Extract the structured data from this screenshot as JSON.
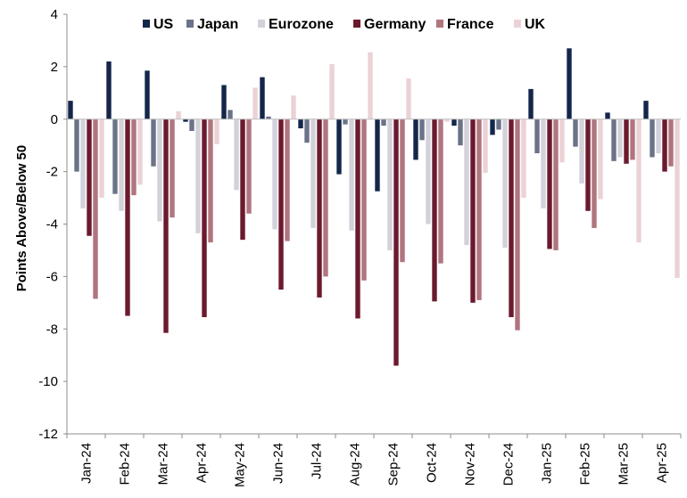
{
  "chart_data": {
    "type": "bar",
    "title": "",
    "xlabel": "",
    "ylabel": "Points Above/Below 50",
    "ylim": [
      -12,
      4
    ],
    "yticks": [
      4,
      2,
      0,
      -2,
      -4,
      -6,
      -8,
      -10,
      -12
    ],
    "grid": false,
    "legend_position": "top",
    "categories": [
      "Jan-24",
      "Feb-24",
      "Mar-24",
      "Apr-24",
      "May-24",
      "Jun-24",
      "Jul-24",
      "Aug-24",
      "Sep-24",
      "Oct-24",
      "Nov-24",
      "Dec-24",
      "Jan-25",
      "Feb-25",
      "Mar-25",
      "Apr-25"
    ],
    "series": [
      {
        "name": "US",
        "color": "#14264a",
        "values": [
          0.7,
          2.2,
          1.85,
          -0.1,
          1.3,
          1.6,
          -0.35,
          -2.1,
          -2.75,
          -1.55,
          -0.25,
          -0.6,
          1.15,
          2.7,
          0.25,
          0.7
        ]
      },
      {
        "name": "Japan",
        "color": "#6b7388",
        "values": [
          -2.0,
          -2.85,
          -1.8,
          -0.45,
          0.35,
          0.1,
          -0.9,
          -0.2,
          -0.25,
          -0.8,
          -1.0,
          -0.4,
          -1.3,
          -1.05,
          -1.6,
          -1.45
        ]
      },
      {
        "name": "Eurozone",
        "color": "#d3d1d9",
        "values": [
          -3.4,
          -3.5,
          -3.9,
          -4.35,
          -2.7,
          -4.2,
          -4.15,
          -4.25,
          -5.0,
          -4.0,
          -4.8,
          -4.9,
          -3.4,
          -2.45,
          -1.45,
          -1.3
        ]
      },
      {
        "name": "Germany",
        "color": "#6b1a2e",
        "values": [
          -4.45,
          -7.5,
          -8.15,
          -7.55,
          -4.6,
          -6.5,
          -6.8,
          -7.6,
          -9.4,
          -6.95,
          -7.0,
          -7.55,
          -4.95,
          -3.5,
          -1.7,
          -2.0
        ]
      },
      {
        "name": "France",
        "color": "#b0757f",
        "values": [
          -6.85,
          -2.9,
          -3.75,
          -4.7,
          -3.6,
          -4.65,
          -6.0,
          -6.15,
          -5.45,
          -5.5,
          -6.9,
          -8.05,
          -5.0,
          -4.15,
          -1.55,
          -1.8
        ]
      },
      {
        "name": "UK",
        "color": "#ebd2d6",
        "values": [
          -3.0,
          -2.5,
          0.3,
          -0.95,
          1.2,
          0.9,
          2.1,
          2.55,
          1.55,
          -0.1,
          -2.05,
          -3.0,
          -1.65,
          -3.05,
          -4.7,
          -6.05
        ]
      }
    ]
  }
}
